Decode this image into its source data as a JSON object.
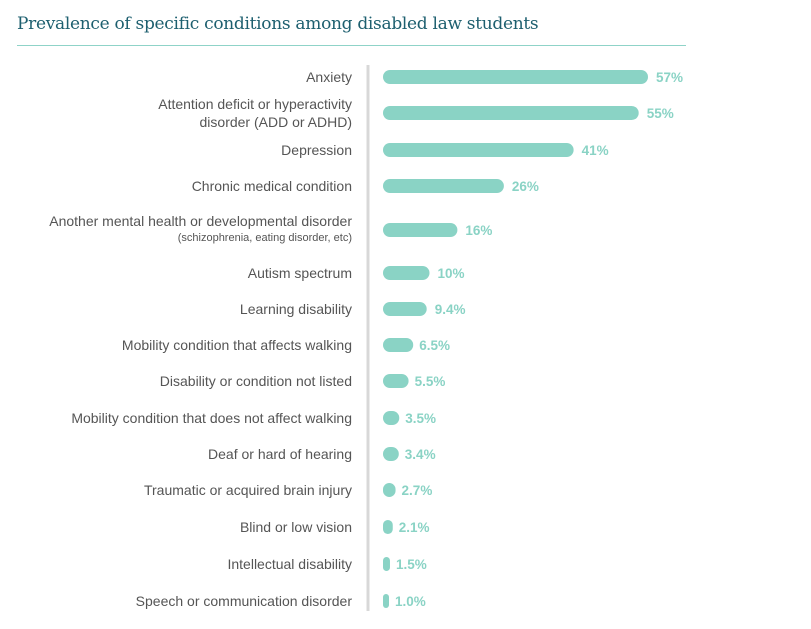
{
  "chart_data": {
    "type": "bar",
    "orientation": "horizontal",
    "title": "Prevalence of specific conditions among disabled law students",
    "categories": [
      {
        "label": "Anxiety"
      },
      {
        "label": "Attention deficit or hyperactivity",
        "label2": "disorder (ADD or ADHD)"
      },
      {
        "label": "Depression"
      },
      {
        "label": "Chronic medical condition"
      },
      {
        "label": "Another mental health or developmental disorder",
        "sublabel": "(schizophrenia, eating disorder, etc)"
      },
      {
        "label": "Autism spectrum"
      },
      {
        "label": "Learning disability"
      },
      {
        "label": "Mobility condition that affects walking"
      },
      {
        "label": "Disability or condition not listed"
      },
      {
        "label": "Mobility condition that does not affect walking"
      },
      {
        "label": "Deaf or hard of hearing"
      },
      {
        "label": "Traumatic or acquired brain injury"
      },
      {
        "label": "Blind or low vision"
      },
      {
        "label": "Intellectual disability"
      },
      {
        "label": "Speech or communication disorder"
      }
    ],
    "values": [
      57,
      55,
      41,
      26,
      16,
      10,
      9.4,
      6.5,
      5.5,
      3.5,
      3.4,
      2.7,
      2.1,
      1.5,
      1.0
    ],
    "value_labels": [
      "57%",
      "55%",
      "41%",
      "26%",
      "16%",
      "10%",
      "9.4%",
      "6.5%",
      "5.5%",
      "3.5%",
      "3.4%",
      "2.7%",
      "2.1%",
      "1.5%",
      "1.0%"
    ],
    "unit": "%",
    "grid": false,
    "legend": "none",
    "colors": {
      "bar": "#8ad3c5",
      "value_text": "#8ad3c5",
      "title": "#1d5f6f",
      "axis": "#d8d8d8"
    }
  }
}
